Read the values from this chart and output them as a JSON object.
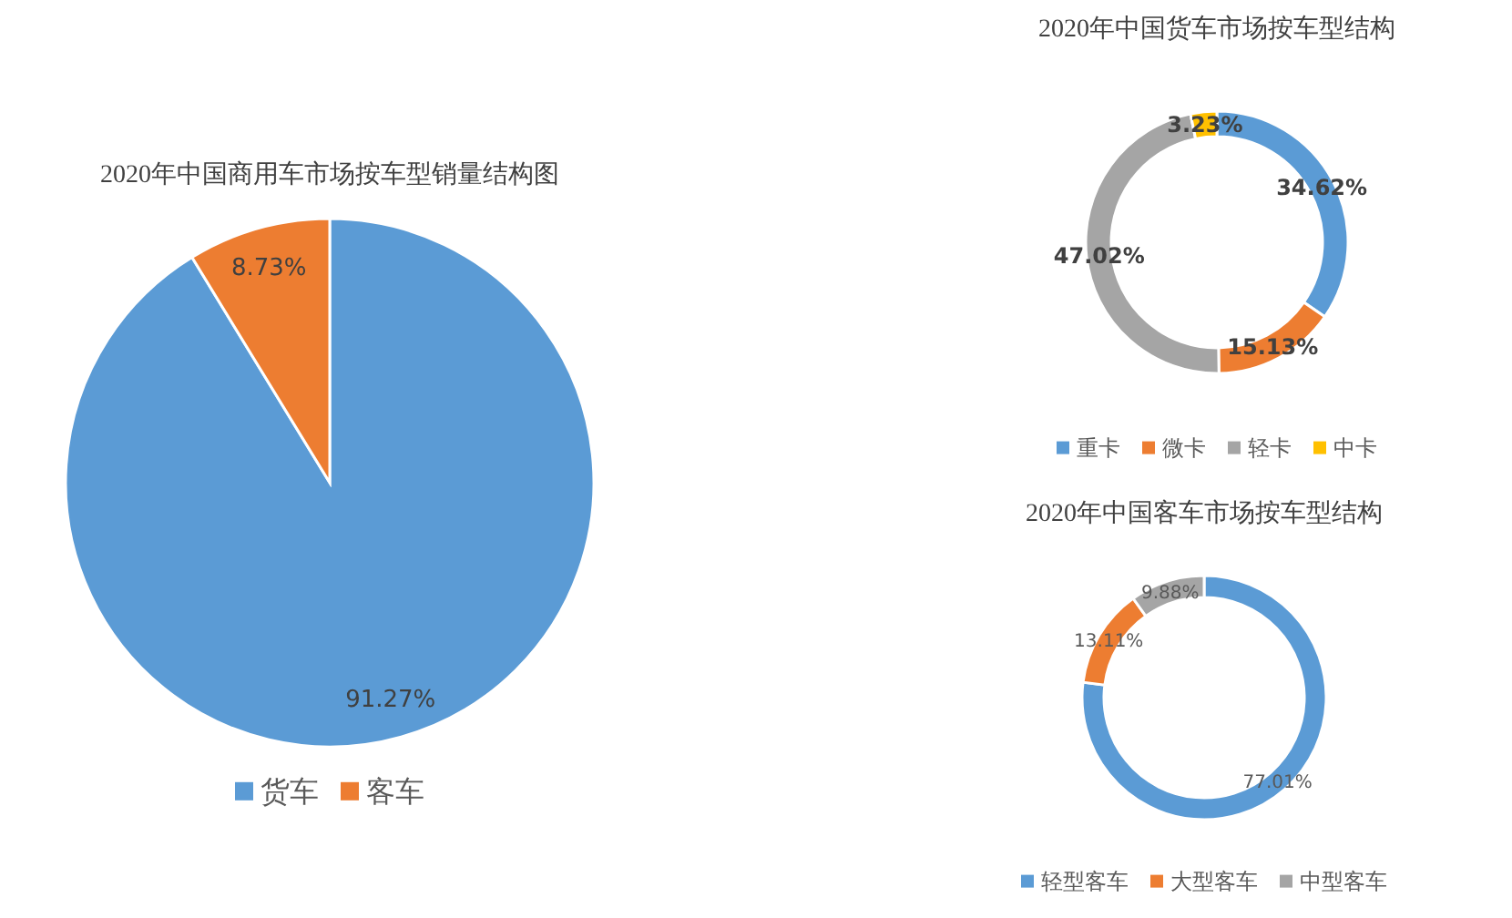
{
  "chart_data": [
    {
      "type": "pie",
      "title": "2020年中国商用车市场按车型销量结构图",
      "categories": [
        "货车",
        "客车"
      ],
      "values": [
        91.27,
        8.73
      ],
      "colors": [
        "#5b9bd5",
        "#ed7d31"
      ],
      "value_labels": [
        "91.27%",
        "8.73%"
      ],
      "legend": "bottom"
    },
    {
      "type": "donut",
      "title": "2020年中国货车市场按车型结构",
      "categories": [
        "重卡",
        "微卡",
        "轻卡",
        "中卡"
      ],
      "values": [
        34.62,
        15.13,
        47.02,
        3.23
      ],
      "colors": [
        "#5b9bd5",
        "#ed7d31",
        "#a5a5a5",
        "#ffc000"
      ],
      "value_labels": [
        "34.62%",
        "15.13%",
        "47.02%",
        "3.23%"
      ],
      "legend": "bottom"
    },
    {
      "type": "donut",
      "title": "2020年中国客车市场按车型结构",
      "categories": [
        "轻型客车",
        "大型客车",
        "中型客车"
      ],
      "values": [
        77.01,
        13.11,
        9.88
      ],
      "colors": [
        "#5b9bd5",
        "#ed7d31",
        "#a5a5a5"
      ],
      "value_labels": [
        "77.01%",
        "13.11%",
        "9.88%"
      ],
      "legend": "bottom"
    }
  ]
}
